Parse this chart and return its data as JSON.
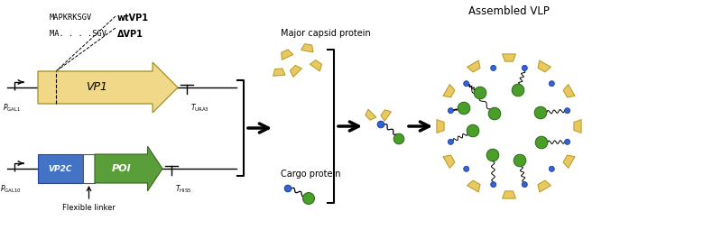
{
  "bg_color": "#ffffff",
  "title_vlp": "Assembled VLP",
  "label_major_capsid": "Major capsid protein",
  "label_cargo": "Cargo protein",
  "label_flexible_linker": "Flexible linker",
  "label_seq1": "MAPKRKSGV",
  "label_seq2": "MA. . . .SGV",
  "label_wtvp1": "wtVP1",
  "label_dvp1": "ΔVP1",
  "color_vp1_arrow": "#f0d888",
  "color_vp2c_box": "#4472c4",
  "color_poi_arrow": "#5a9e3a",
  "color_blue_dot": "#3366cc",
  "color_green_dot": "#4a9e2a",
  "color_capsid_piece": "#e8c860",
  "color_capsid_edge": "#b89820",
  "color_black": "#000000",
  "fig_w": 8.0,
  "fig_h": 2.75,
  "dpi": 100
}
